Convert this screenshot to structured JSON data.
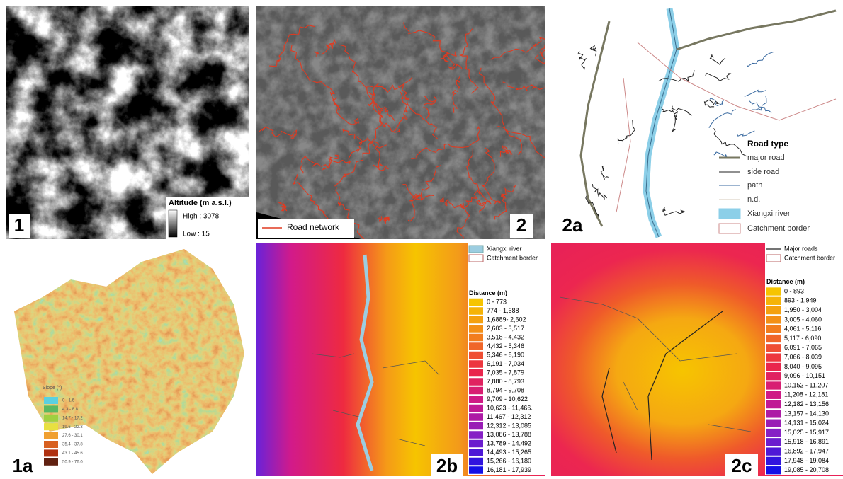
{
  "panels": [
    {
      "label": "1",
      "legend": {
        "title": "Altitude (m a.s.l.)",
        "items": [
          "High : 3078",
          "Low : 15"
        ]
      }
    },
    {
      "label": "2",
      "legend": {
        "items": [
          "Road network"
        ]
      }
    },
    {
      "label": "2a",
      "legend": {
        "title": "Road type",
        "items": [
          "major road",
          "side road",
          "path",
          "n.d.",
          "Xiangxi river",
          "Catchment border"
        ]
      }
    },
    {
      "label": "1a",
      "legend": {
        "title": "Slope (°)",
        "items": [
          "0 - 1.6",
          "4.3 - 8.8",
          "14.7 - 17.2",
          "19.6 - 22.3",
          "27.6 - 30.1",
          "35.4 - 37.8",
          "43.1 - 45.6",
          "50.9 - 76.0"
        ]
      }
    },
    {
      "label": "2b",
      "legend": {
        "items": [
          "Xiangxi river",
          "Catchment border"
        ],
        "title": "Distance (m)",
        "classes": [
          "0 - 773",
          "774 - 1,688",
          "1,6889- 2,602",
          "2,603 - 3,517",
          "3,518 - 4,432",
          "4,432 - 5,346",
          "5,346 - 6,190",
          "6,191 - 7,034",
          "7,035 - 7,879",
          "7,880 - 8,793",
          "8,794 - 9,708",
          "9,709 - 10,622",
          "10,623 - 11,466.",
          "11,467 - 12,312",
          "12,312 - 13,085",
          "13,086 - 13,788",
          "13,789 - 14,492",
          "14,493 - 15,265",
          "15,266 - 16,180",
          "16,181 - 17,939"
        ]
      }
    },
    {
      "label": "2c",
      "legend": {
        "items": [
          "Major roads",
          "Catchment border"
        ],
        "title": "Distance (m)",
        "classes": [
          "0 - 893",
          "893 - 1,949",
          "1,950 - 3,004",
          "3,005 - 4,060",
          "4,061 - 5,116",
          "5,117 - 6,090",
          "6,091 - 7,065",
          "7,066 - 8,039",
          "8,040 - 9,095",
          "9,096 - 10,151",
          "10,152 - 11,207",
          "11,208 - 12,181",
          "12,182 - 13,156",
          "13,157 - 14,130",
          "14,131 - 15,024",
          "15,025 - 15,917",
          "15,918 - 16,891",
          "16,892 - 17,947",
          "17,948 - 19,084",
          "19,085 - 20,708"
        ]
      }
    }
  ]
}
